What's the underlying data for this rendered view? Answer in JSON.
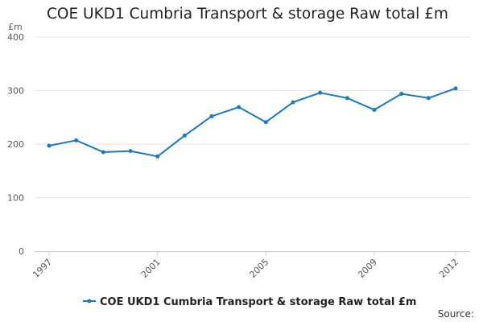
{
  "chart_data": {
    "type": "line",
    "title": "COE UKD1 Cumbria Transport & storage Raw total £m",
    "ylabel": "£m",
    "xlabel": "",
    "ylim": [
      0,
      400
    ],
    "yticks": [
      0,
      100,
      200,
      300,
      400
    ],
    "xlim": [
      1997,
      2012
    ],
    "xticks": [
      1997,
      2001,
      2005,
      2009,
      2012
    ],
    "grid": true,
    "legend_position": "bottom",
    "series": [
      {
        "name": "COE UKD1 Cumbria Transport & storage Raw total £m",
        "color": "#1a7abf",
        "x": [
          1997,
          1998,
          1999,
          2000,
          2001,
          2002,
          2003,
          2004,
          2005,
          2006,
          2007,
          2008,
          2009,
          2010,
          2011,
          2012
        ],
        "values": [
          197,
          207,
          185,
          187,
          177,
          216,
          252,
          269,
          241,
          278,
          296,
          286,
          264,
          294,
          286,
          304
        ]
      }
    ],
    "source_label": "Source:"
  }
}
